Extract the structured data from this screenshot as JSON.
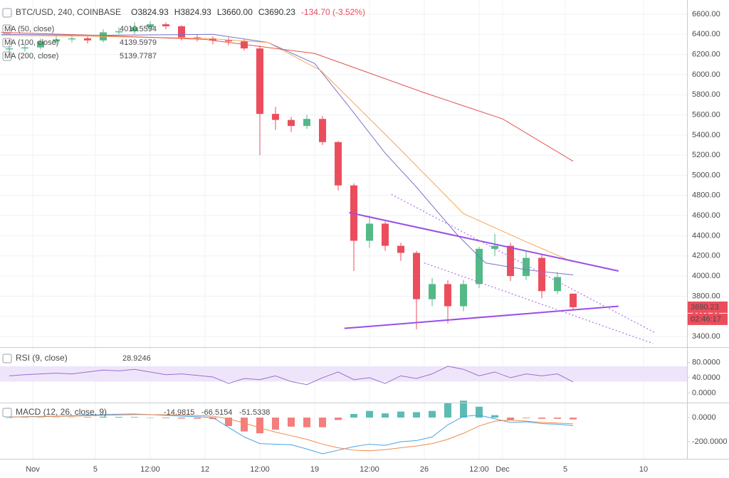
{
  "chart_data": [
    {
      "type": "candlestick",
      "title": "BTC/USD, 240, COINBASE",
      "info": [
        "O3824.93",
        "H3824.93",
        "L3660.00",
        "C3690.23",
        "-134.70 (-3.52%)"
      ],
      "countdown": "02:46:17",
      "up_color": "#53b987",
      "down_color": "#eb4d5c",
      "x": [
        -1.5,
        -0.5,
        0.5,
        1.5,
        2.5,
        3.5,
        4.5,
        5.5,
        6.5,
        7.5,
        8.5,
        9.5,
        10.5,
        11.5,
        12.5,
        13.5,
        14.5,
        15.5,
        16.5,
        17.5,
        18.5,
        19.5,
        20.5,
        21.5,
        22.5,
        23.5,
        24.5,
        25.5,
        26.5,
        27.5,
        28.5,
        29.5,
        30.5,
        31.5,
        32.5,
        33.5,
        34.5
      ],
      "open": [
        6250,
        6260,
        6270,
        6330,
        6350,
        6360,
        6340,
        6420,
        6430,
        6470,
        6500,
        6480,
        6370,
        6360,
        6340,
        6330,
        6260,
        5610,
        5550,
        5490,
        5560,
        5330,
        4900,
        4350,
        4520,
        4300,
        4230,
        3770,
        3920,
        3700,
        3920,
        4270,
        4300,
        4000,
        4180,
        3850,
        3824.93
      ],
      "high": [
        6290,
        6300,
        6360,
        6380,
        6390,
        6380,
        6450,
        6470,
        6520,
        6530,
        6520,
        6490,
        6400,
        6380,
        6370,
        6350,
        6290,
        5680,
        5580,
        5600,
        5590,
        5340,
        4920,
        4600,
        4540,
        4330,
        4250,
        3980,
        3960,
        3960,
        4290,
        4420,
        4330,
        4240,
        4210,
        4040,
        3824.93
      ],
      "low": [
        6200,
        6230,
        6250,
        6300,
        6320,
        6310,
        6320,
        6400,
        6400,
        6440,
        6450,
        6340,
        6330,
        6300,
        6290,
        6240,
        5200,
        5450,
        5430,
        5460,
        5300,
        4850,
        4050,
        4280,
        4250,
        4150,
        3470,
        3700,
        3530,
        3650,
        3880,
        4200,
        3950,
        3960,
        3780,
        3820,
        3660
      ],
      "close": [
        6260,
        6270,
        6330,
        6350,
        6360,
        6340,
        6420,
        6430,
        6470,
        6500,
        6480,
        6370,
        6360,
        6340,
        6330,
        6260,
        5610,
        5550,
        5490,
        5560,
        5330,
        4900,
        4350,
        4520,
        4300,
        4230,
        3770,
        3920,
        3700,
        3920,
        4270,
        4300,
        4000,
        4180,
        3850,
        3990,
        3690.23
      ],
      "series": [
        {
          "name": "MA (50, close)",
          "color": "#7b74c9",
          "x": [
            -2,
            4,
            11.5,
            15,
            18,
            20.2,
            22.5,
            24.4,
            27.1,
            28.9,
            31.6,
            34.5
          ],
          "values": [
            6400,
            6390,
            6400,
            6320,
            6110,
            5680,
            5220,
            4900,
            4410,
            4130,
            4060,
            4010.5594
          ]
        },
        {
          "name": "MA (100, close)",
          "color": "#f5a55a",
          "x": [
            -2,
            4,
            11,
            15,
            18.4,
            23,
            27.5,
            31.5,
            34.5
          ],
          "values": [
            6390,
            6380,
            6360,
            6320,
            6040,
            5330,
            4620,
            4340,
            4139.5979
          ]
        },
        {
          "name": "MA (200, close)",
          "color": "#e0534f",
          "x": [
            -2,
            4,
            11,
            18,
            25,
            30,
            34.5
          ],
          "values": [
            6420,
            6390,
            6350,
            6210,
            5820,
            5560,
            5139.7787
          ]
        }
      ],
      "drawings": [
        {
          "style": "solid",
          "color": "#9b4ee8",
          "x": [
            20.2,
            37.4
          ],
          "values": [
            4630,
            4050
          ]
        },
        {
          "style": "solid",
          "color": "#9b4ee8",
          "x": [
            19.9,
            37.4
          ],
          "values": [
            3480,
            3700
          ]
        },
        {
          "style": "dotted",
          "color": "#b06be6",
          "x": [
            22.9,
            39.7
          ],
          "values": [
            4810,
            3440
          ]
        },
        {
          "style": "dotted",
          "color": "#b06be6",
          "x": [
            25,
            39.6
          ],
          "values": [
            4130,
            3330
          ]
        }
      ],
      "xlim": [
        -2.09,
        41.77
      ],
      "xticks": [
        {
          "value": 0,
          "label": "Nov"
        },
        {
          "value": 4,
          "label": "5"
        },
        {
          "value": 7.5,
          "label": "12:00"
        },
        {
          "value": 11,
          "label": "12"
        },
        {
          "value": 14.5,
          "label": "12:00"
        },
        {
          "value": 18,
          "label": "19"
        },
        {
          "value": 21.5,
          "label": "12:00"
        },
        {
          "value": 25,
          "label": "26"
        },
        {
          "value": 28.5,
          "label": "12:00"
        },
        {
          "value": 30,
          "label": "Dec"
        },
        {
          "value": 34,
          "label": "5"
        },
        {
          "value": 39,
          "label": "10"
        }
      ],
      "ylim": [
        3294,
        6741
      ],
      "yticks": [
        {
          "value": 3400,
          "label": "3400.00"
        },
        {
          "value": 3600,
          "label": "3600.00"
        },
        {
          "value": 3800,
          "label": "3800.00"
        },
        {
          "value": 4000,
          "label": "4000.00"
        },
        {
          "value": 4200,
          "label": "4200.00"
        },
        {
          "value": 4400,
          "label": "4400.00"
        },
        {
          "value": 4600,
          "label": "4600.00"
        },
        {
          "value": 4800,
          "label": "4800.00"
        },
        {
          "value": 5000,
          "label": "5000.00"
        },
        {
          "value": 5200,
          "label": "5200.00"
        },
        {
          "value": 5400,
          "label": "5400.00"
        },
        {
          "value": 5600,
          "label": "5600.00"
        },
        {
          "value": 5800,
          "label": "5800.00"
        },
        {
          "value": 6000,
          "label": "6000.00"
        },
        {
          "value": 6200,
          "label": "6200.00"
        },
        {
          "value": 6400,
          "label": "6400.00"
        },
        {
          "value": 6600,
          "label": "6600.00"
        }
      ],
      "grid": true
    },
    {
      "type": "line",
      "title": "RSI (9, close)",
      "color": "#9a6fcf",
      "band": [
        30,
        70
      ],
      "x": [
        -1.5,
        -0.5,
        0.5,
        1.5,
        2.5,
        3.5,
        4.5,
        5.5,
        6.5,
        7.5,
        8.5,
        9.5,
        10.5,
        11.5,
        12.5,
        13.5,
        14.5,
        15.5,
        16.5,
        17.5,
        18.5,
        19.5,
        20.5,
        21.5,
        22.5,
        23.5,
        24.5,
        25.5,
        26.5,
        27.5,
        28.5,
        29.5,
        30.5,
        31.5,
        32.5,
        33.5,
        34.5
      ],
      "values": [
        45,
        48,
        50,
        52,
        50,
        55,
        60,
        58,
        62,
        55,
        48,
        50,
        46,
        42,
        25,
        38,
        35,
        45,
        30,
        22,
        40,
        55,
        35,
        40,
        25,
        45,
        38,
        50,
        70,
        62,
        45,
        55,
        40,
        50,
        45,
        50,
        28.9246
      ],
      "ylim": [
        -25,
        120
      ],
      "yticks": [
        {
          "value": 0,
          "label": "0.0000"
        },
        {
          "value": 40,
          "label": "40.0000"
        },
        {
          "value": 80,
          "label": "80.0000"
        }
      ]
    },
    {
      "type": "macd",
      "title": "MACD (12, 26, close, 9)",
      "x": [
        -1.5,
        -0.5,
        0.5,
        1.5,
        2.5,
        3.5,
        4.5,
        5.5,
        6.5,
        7.5,
        8.5,
        9.5,
        10.5,
        11.5,
        12.5,
        13.5,
        14.5,
        15.5,
        16.5,
        17.5,
        18.5,
        19.5,
        20.5,
        21.5,
        22.5,
        23.5,
        24.5,
        25.5,
        26.5,
        27.5,
        28.5,
        29.5,
        30.5,
        31.5,
        32.5,
        33.5,
        34.5
      ],
      "histogram": {
        "up_color": "#26a69a",
        "down_color": "#ef5350",
        "values": [
          0,
          2,
          2,
          2,
          3,
          5,
          7,
          6,
          5,
          0,
          -5,
          -8,
          -9,
          -12,
          -70,
          -115,
          -130,
          -100,
          -75,
          -80,
          -80,
          -20,
          30,
          55,
          35,
          50,
          45,
          55,
          120,
          140,
          90,
          20,
          -20,
          -5,
          -10,
          -10,
          -14.9815
        ]
      },
      "series": [
        {
          "color": "#4aa3e8",
          "values": [
            5,
            8,
            10,
            12,
            15,
            20,
            25,
            28,
            30,
            25,
            18,
            12,
            8,
            0,
            -80,
            -160,
            -215,
            -220,
            -225,
            -260,
            -300,
            -270,
            -240,
            -220,
            -230,
            -200,
            -190,
            -160,
            -60,
            10,
            20,
            -10,
            -40,
            -35,
            -50,
            -55,
            -66.5154
          ]
        },
        {
          "color": "#f08a4b",
          "values": [
            5,
            6,
            8,
            10,
            12,
            15,
            18,
            22,
            25,
            25,
            23,
            20,
            17,
            12,
            -10,
            -45,
            -85,
            -120,
            -150,
            -180,
            -220,
            -250,
            -270,
            -275,
            -265,
            -250,
            -235,
            -215,
            -180,
            -130,
            -70,
            -30,
            -20,
            -30,
            -40,
            -45,
            -51.5338
          ]
        }
      ],
      "ylim": [
        -341,
        124
      ],
      "yticks": [
        {
          "value": -200,
          "label": "-200.0000"
        },
        {
          "value": 0,
          "label": "0.0000"
        }
      ]
    }
  ]
}
